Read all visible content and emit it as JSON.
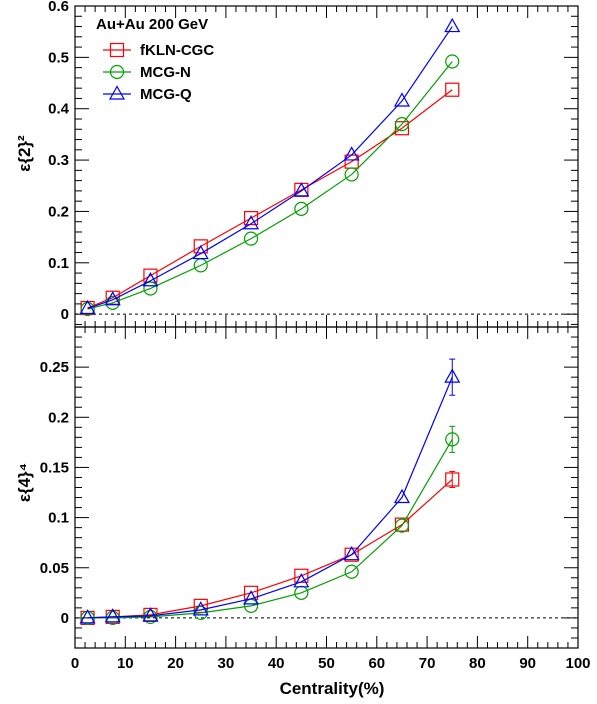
{
  "chart_data": [
    {
      "type": "line",
      "ylabel": "ε{2}²",
      "ylim": [
        -0.025,
        0.6
      ],
      "yticks": [
        0,
        0.1,
        0.2,
        0.3,
        0.4,
        0.5,
        0.6
      ],
      "ytick_labels": [
        "0",
        "0.1",
        "0.2",
        "0.3",
        "0.4",
        "0.5",
        "0.6"
      ],
      "xlim": [
        0,
        100
      ],
      "legend": {
        "title": "Au+Au 200 GeV",
        "placement": "top-left"
      },
      "series": [
        {
          "name": "fKLN-CGC",
          "color": "#ff0000",
          "marker": "square",
          "x": [
            2.5,
            7.5,
            15,
            25,
            35,
            45,
            55,
            65,
            75
          ],
          "y": [
            0.012,
            0.032,
            0.075,
            0.132,
            0.187,
            0.242,
            0.297,
            0.362,
            0.437
          ]
        },
        {
          "name": "MCG-N",
          "color": "#00a000",
          "marker": "circle",
          "x": [
            2.5,
            7.5,
            15,
            25,
            35,
            45,
            55,
            65,
            75
          ],
          "y": [
            0.01,
            0.022,
            0.05,
            0.095,
            0.147,
            0.205,
            0.272,
            0.37,
            0.492
          ]
        },
        {
          "name": "MCG-Q",
          "color": "#0000ff",
          "marker": "triangle",
          "x": [
            2.5,
            7.5,
            15,
            25,
            35,
            45,
            55,
            65,
            75
          ],
          "y": [
            0.011,
            0.028,
            0.065,
            0.118,
            0.176,
            0.24,
            0.31,
            0.415,
            0.56
          ]
        }
      ]
    },
    {
      "type": "line",
      "ylabel": "ε{4}⁴",
      "xlabel": "Centrality(%)",
      "ylim": [
        -0.03,
        0.29
      ],
      "yticks": [
        0,
        0.05,
        0.1,
        0.15,
        0.2,
        0.25
      ],
      "ytick_labels": [
        "0",
        "0.05",
        "0.1",
        "0.15",
        "0.2",
        "0.25"
      ],
      "xlim": [
        0,
        100
      ],
      "xticks": [
        0,
        10,
        20,
        30,
        40,
        50,
        60,
        70,
        80,
        90,
        100
      ],
      "xtick_labels": [
        "0",
        "10",
        "20",
        "30",
        "40",
        "50",
        "60",
        "70",
        "80",
        "90",
        "100"
      ],
      "series": [
        {
          "name": "fKLN-CGC",
          "color": "#ff0000",
          "marker": "square",
          "x": [
            2.5,
            7.5,
            15,
            25,
            35,
            45,
            55,
            65,
            75
          ],
          "y": [
            0.0,
            0.001,
            0.003,
            0.012,
            0.025,
            0.042,
            0.063,
            0.093,
            0.138
          ],
          "yerr": [
            0,
            0,
            0,
            0,
            0,
            0,
            0,
            0,
            0.008
          ]
        },
        {
          "name": "MCG-N",
          "color": "#00a000",
          "marker": "circle",
          "x": [
            2.5,
            7.5,
            15,
            25,
            35,
            45,
            55,
            65,
            75
          ],
          "y": [
            0.0,
            0.0,
            0.001,
            0.005,
            0.012,
            0.025,
            0.046,
            0.092,
            0.178
          ],
          "yerr": [
            0,
            0,
            0,
            0,
            0,
            0,
            0,
            0,
            0.013
          ]
        },
        {
          "name": "MCG-Q",
          "color": "#0000ff",
          "marker": "triangle",
          "x": [
            2.5,
            7.5,
            15,
            25,
            35,
            45,
            55,
            65,
            75
          ],
          "y": [
            0.0,
            0.001,
            0.002,
            0.008,
            0.019,
            0.036,
            0.063,
            0.12,
            0.24
          ],
          "yerr": [
            0,
            0,
            0,
            0,
            0,
            0,
            0,
            0,
            0.018
          ]
        }
      ]
    }
  ]
}
